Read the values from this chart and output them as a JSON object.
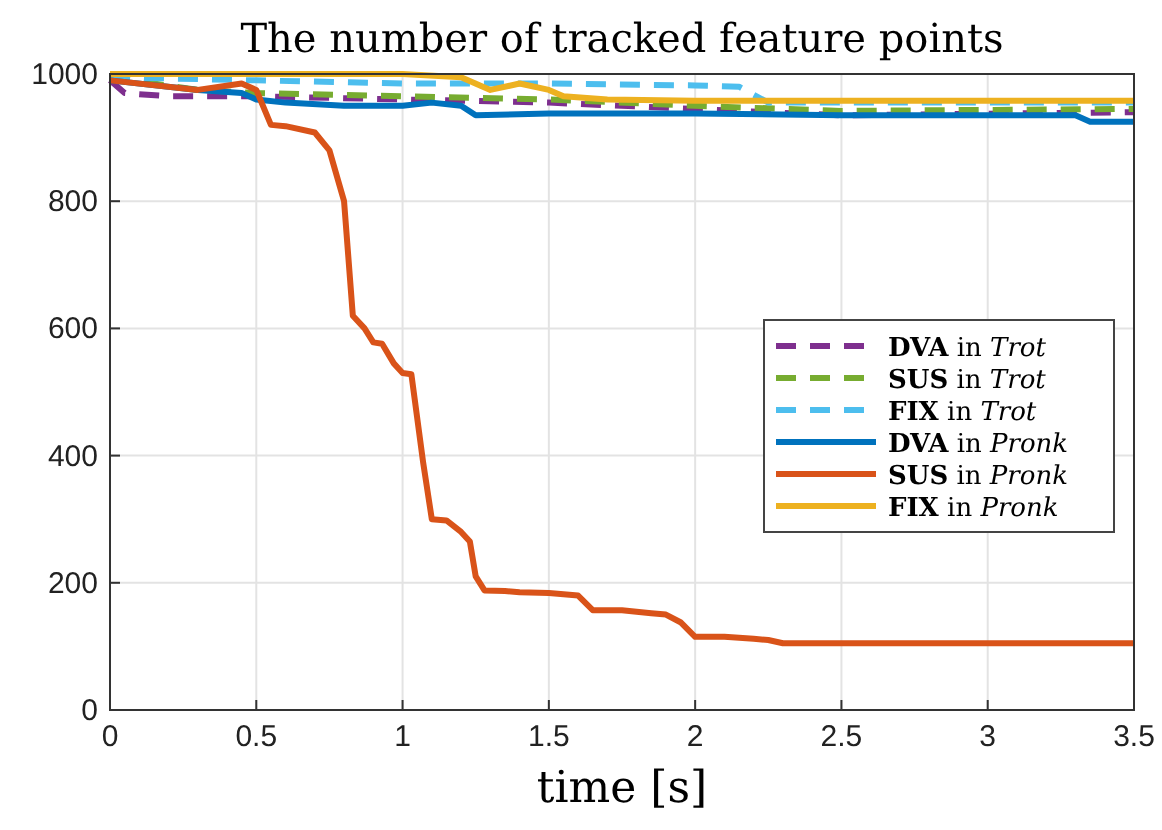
{
  "chart_data": {
    "type": "line",
    "title": "The number of tracked feature points",
    "xlabel": "time [s]",
    "xlim": [
      0,
      3.5
    ],
    "xticks": [
      0,
      0.5,
      1,
      1.5,
      2,
      2.5,
      3,
      3.5
    ],
    "ylim": [
      0,
      1000
    ],
    "yticks": [
      0,
      200,
      400,
      600,
      800,
      1000
    ],
    "grid": true,
    "legend": "right",
    "series": [
      {
        "name": "DVA in Trot",
        "color": "#7e2f8e",
        "line_style": "dashed",
        "x": [
          0,
          0.05,
          0.2,
          0.5,
          1.0,
          1.5,
          2.0,
          2.5,
          3.5
        ],
        "values": [
          990,
          970,
          965,
          965,
          960,
          955,
          945,
          935,
          940
        ]
      },
      {
        "name": "SUS in Trot",
        "color": "#77ac30",
        "line_style": "dashed",
        "x": [
          0,
          0.3,
          0.5,
          1.0,
          1.5,
          2.0,
          2.5,
          3.5
        ],
        "values": [
          995,
          975,
          970,
          965,
          960,
          950,
          942,
          945
        ]
      },
      {
        "name": "FIX in Trot",
        "color": "#4dbeee",
        "line_style": "dashed",
        "x": [
          0,
          0.5,
          1.0,
          1.5,
          2.0,
          2.15,
          2.25,
          3.5
        ],
        "values": [
          995,
          990,
          985,
          985,
          982,
          980,
          955,
          955
        ]
      },
      {
        "name": "DVA in Pronk",
        "color": "#0072bd",
        "line_style": "solid",
        "x": [
          0,
          0.3,
          0.45,
          0.5,
          0.6,
          0.8,
          1.0,
          1.1,
          1.2,
          1.25,
          1.5,
          2.0,
          2.5,
          3.3,
          3.35,
          3.5
        ],
        "values": [
          990,
          975,
          970,
          960,
          955,
          950,
          950,
          955,
          950,
          935,
          938,
          938,
          935,
          935,
          925,
          925
        ]
      },
      {
        "name": "SUS in Pronk",
        "color": "#d95319",
        "line_style": "solid",
        "x": [
          0,
          0.3,
          0.45,
          0.5,
          0.55,
          0.6,
          0.7,
          0.75,
          0.8,
          0.83,
          0.87,
          0.9,
          0.93,
          0.97,
          1.0,
          1.03,
          1.07,
          1.1,
          1.15,
          1.2,
          1.23,
          1.25,
          1.28,
          1.35,
          1.4,
          1.5,
          1.55,
          1.6,
          1.65,
          1.75,
          1.85,
          1.9,
          1.95,
          2.0,
          2.1,
          2.2,
          2.25,
          2.3,
          3.5
        ],
        "values": [
          990,
          975,
          985,
          975,
          920,
          918,
          908,
          880,
          800,
          620,
          600,
          578,
          576,
          545,
          530,
          528,
          390,
          300,
          298,
          280,
          265,
          210,
          188,
          187,
          185,
          184,
          182,
          180,
          157,
          157,
          152,
          150,
          138,
          115,
          115,
          112,
          110,
          105,
          105
        ]
      },
      {
        "name": "FIX in Pronk",
        "color": "#edb120",
        "line_style": "solid",
        "x": [
          0,
          1.0,
          1.2,
          1.3,
          1.4,
          1.5,
          1.55,
          1.7,
          2.0,
          3.5
        ],
        "values": [
          1000,
          1000,
          995,
          975,
          985,
          975,
          965,
          960,
          958,
          958
        ]
      }
    ]
  }
}
